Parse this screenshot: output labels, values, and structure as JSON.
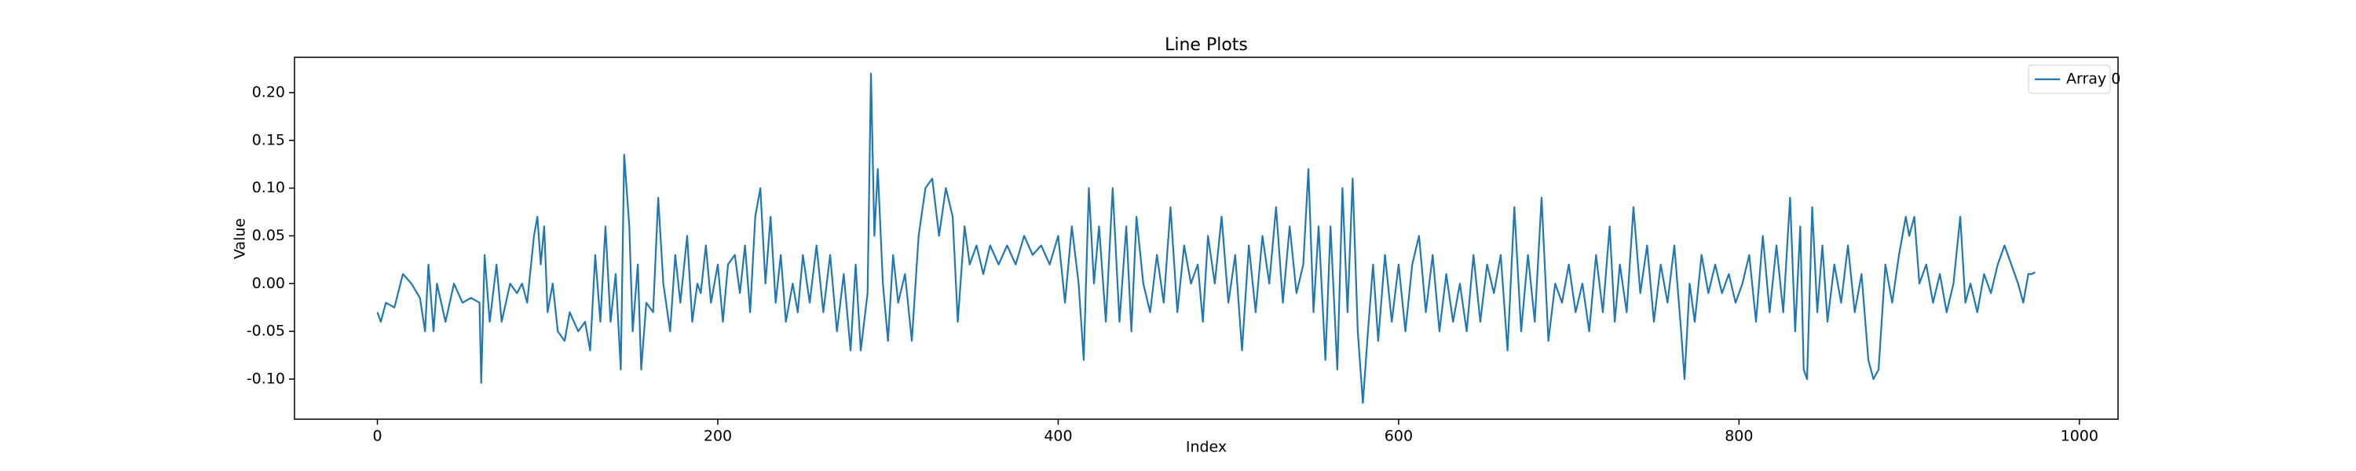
{
  "chart_data": {
    "type": "line",
    "title": "Line Plots",
    "xlabel": "Index",
    "ylabel": "Value",
    "x": [
      0,
      2,
      5,
      10,
      15,
      20,
      25,
      28,
      30,
      33,
      35,
      40,
      45,
      50,
      55,
      60,
      61,
      63,
      66,
      70,
      73,
      78,
      82,
      85,
      88,
      92,
      94,
      96,
      98,
      100,
      103,
      106,
      110,
      113,
      118,
      122,
      125,
      128,
      131,
      134,
      137,
      140,
      143,
      145,
      148,
      150,
      153,
      155,
      158,
      162,
      165,
      168,
      172,
      175,
      178,
      182,
      185,
      188,
      190,
      193,
      196,
      200,
      203,
      206,
      210,
      213,
      216,
      219,
      222,
      225,
      228,
      231,
      234,
      237,
      240,
      244,
      247,
      250,
      254,
      258,
      262,
      266,
      270,
      274,
      278,
      281,
      284,
      288,
      290,
      292,
      294,
      297,
      300,
      303,
      306,
      310,
      314,
      318,
      322,
      326,
      330,
      334,
      338,
      341,
      345,
      348,
      352,
      356,
      360,
      365,
      370,
      375,
      380,
      385,
      390,
      395,
      400,
      404,
      408,
      412,
      415,
      418,
      421,
      424,
      428,
      432,
      436,
      440,
      443,
      446,
      450,
      454,
      458,
      462,
      466,
      470,
      474,
      478,
      482,
      485,
      488,
      492,
      496,
      500,
      504,
      508,
      512,
      516,
      520,
      524,
      528,
      532,
      536,
      540,
      544,
      547,
      550,
      553,
      557,
      560,
      564,
      567,
      570,
      573,
      576,
      579,
      582,
      585,
      588,
      592,
      596,
      600,
      604,
      608,
      612,
      616,
      620,
      624,
      628,
      632,
      636,
      640,
      644,
      648,
      652,
      656,
      660,
      664,
      668,
      672,
      676,
      680,
      684,
      688,
      692,
      696,
      700,
      704,
      708,
      712,
      716,
      720,
      724,
      727,
      730,
      734,
      738,
      742,
      746,
      750,
      754,
      758,
      762,
      766,
      768,
      771,
      774,
      778,
      782,
      786,
      790,
      794,
      798,
      802,
      806,
      810,
      814,
      818,
      822,
      826,
      830,
      833,
      836,
      838,
      840,
      843,
      846,
      849,
      852,
      856,
      860,
      864,
      868,
      872,
      876,
      879,
      882,
      886,
      890,
      894,
      898,
      900,
      903,
      906,
      910,
      914,
      918,
      922,
      926,
      930,
      933,
      936,
      940,
      944,
      948,
      952,
      956,
      960,
      964,
      967,
      970,
      972,
      974
    ],
    "series": [
      {
        "name": "Array 0",
        "color": "#1f77b4",
        "values": [
          -0.03,
          -0.04,
          -0.02,
          -0.025,
          0.01,
          0.0,
          -0.015,
          -0.05,
          0.02,
          -0.05,
          0.0,
          -0.04,
          0.0,
          -0.02,
          -0.015,
          -0.02,
          -0.104,
          0.03,
          -0.04,
          0.02,
          -0.04,
          0.0,
          -0.01,
          0.0,
          -0.02,
          0.05,
          0.07,
          0.02,
          0.06,
          -0.03,
          0.0,
          -0.05,
          -0.06,
          -0.03,
          -0.05,
          -0.04,
          -0.07,
          0.03,
          -0.04,
          0.06,
          -0.04,
          0.01,
          -0.09,
          0.135,
          0.06,
          -0.05,
          0.02,
          -0.09,
          -0.02,
          -0.03,
          0.09,
          0.0,
          -0.05,
          0.03,
          -0.02,
          0.05,
          -0.04,
          0.0,
          -0.01,
          0.04,
          -0.02,
          0.02,
          -0.04,
          0.02,
          0.03,
          -0.01,
          0.04,
          -0.03,
          0.07,
          0.1,
          0.0,
          0.07,
          -0.02,
          0.03,
          -0.04,
          0.0,
          -0.03,
          0.03,
          -0.02,
          0.04,
          -0.03,
          0.03,
          -0.05,
          0.01,
          -0.07,
          0.02,
          -0.07,
          -0.01,
          0.22,
          0.05,
          0.12,
          0.0,
          -0.06,
          0.03,
          -0.02,
          0.01,
          -0.06,
          0.05,
          0.1,
          0.11,
          0.05,
          0.1,
          0.07,
          -0.04,
          0.06,
          0.02,
          0.04,
          0.01,
          0.04,
          0.02,
          0.04,
          0.02,
          0.05,
          0.03,
          0.04,
          0.02,
          0.05,
          -0.02,
          0.06,
          0.0,
          -0.08,
          0.1,
          0.0,
          0.06,
          -0.04,
          0.1,
          -0.04,
          0.06,
          -0.05,
          0.07,
          0.0,
          -0.03,
          0.03,
          -0.02,
          0.08,
          -0.03,
          0.04,
          0.0,
          0.02,
          -0.04,
          0.05,
          0.0,
          0.07,
          -0.02,
          0.03,
          -0.07,
          0.04,
          -0.03,
          0.05,
          0.0,
          0.08,
          -0.02,
          0.06,
          -0.01,
          0.02,
          0.12,
          -0.03,
          0.06,
          -0.08,
          0.06,
          -0.09,
          0.1,
          -0.03,
          0.11,
          -0.05,
          -0.125,
          -0.05,
          0.02,
          -0.06,
          0.03,
          -0.04,
          0.02,
          -0.05,
          0.02,
          0.05,
          -0.03,
          0.03,
          -0.05,
          0.01,
          -0.04,
          0.0,
          -0.05,
          0.03,
          -0.04,
          0.02,
          -0.01,
          0.03,
          -0.07,
          0.08,
          -0.05,
          0.03,
          -0.04,
          0.09,
          -0.06,
          0.0,
          -0.02,
          0.02,
          -0.03,
          0.0,
          -0.05,
          0.03,
          -0.03,
          0.06,
          -0.04,
          0.02,
          -0.03,
          0.08,
          -0.01,
          0.04,
          -0.04,
          0.02,
          -0.02,
          0.04,
          -0.05,
          -0.1,
          0.0,
          -0.04,
          0.03,
          -0.01,
          0.02,
          -0.01,
          0.01,
          -0.02,
          0.0,
          0.03,
          -0.04,
          0.05,
          -0.03,
          0.04,
          -0.03,
          0.09,
          -0.05,
          0.06,
          -0.09,
          -0.1,
          0.08,
          -0.03,
          0.04,
          -0.04,
          0.02,
          -0.02,
          0.04,
          -0.03,
          0.01,
          -0.08,
          -0.1,
          -0.09,
          0.02,
          -0.02,
          0.03,
          0.07,
          0.05,
          0.07,
          0.0,
          0.02,
          -0.02,
          0.01,
          -0.03,
          0.0,
          0.07,
          -0.02,
          0.0,
          -0.03,
          0.01,
          -0.01,
          0.02,
          0.04,
          0.02,
          0.0,
          -0.02,
          0.01,
          0.01,
          0.012
        ]
      }
    ],
    "xlim": [
      -48.7,
      1022.7
    ],
    "ylim": [
      -0.142,
      0.237
    ],
    "xticks": [
      0,
      200,
      400,
      600,
      800,
      1000
    ],
    "yticks": [
      {
        "value": -0.1,
        "label": "-0.10"
      },
      {
        "value": -0.05,
        "label": "-0.05"
      },
      {
        "value": 0,
        "label": "0.00"
      },
      {
        "value": 0.05,
        "label": "0.05"
      },
      {
        "value": 0.1,
        "label": "0.10"
      },
      {
        "value": 0.15,
        "label": "0.15"
      },
      {
        "value": 0.2,
        "label": "0.20"
      }
    ],
    "legend": "upper right"
  }
}
